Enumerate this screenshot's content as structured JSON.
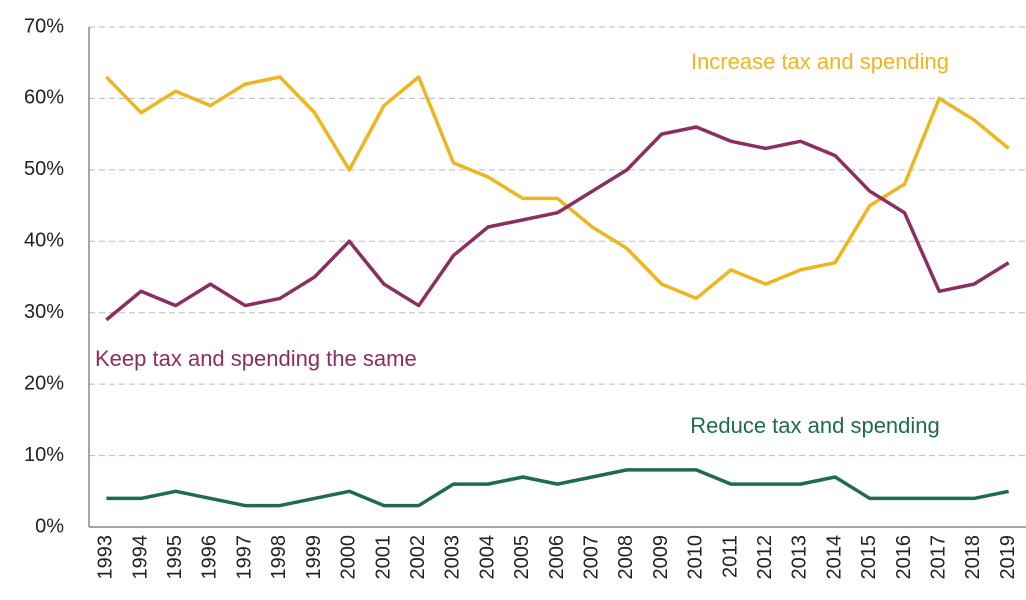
{
  "chart_data": {
    "type": "line",
    "categories": [
      "1993",
      "1994",
      "1995",
      "1996",
      "1997",
      "1998",
      "1999",
      "2000",
      "2001",
      "2002",
      "2003",
      "2004",
      "2005",
      "2006",
      "2007",
      "2008",
      "2009",
      "2010",
      "2011",
      "2012",
      "2013",
      "2014",
      "2015",
      "2016",
      "2017",
      "2018",
      "2019"
    ],
    "series": [
      {
        "name": "Increase tax and spending",
        "color": "#efb521",
        "values": [
          63,
          58,
          61,
          59,
          62,
          63,
          58,
          50,
          59,
          63,
          51,
          49,
          46,
          46,
          42,
          39,
          34,
          32,
          36,
          34,
          36,
          37,
          45,
          48,
          60,
          57,
          53
        ]
      },
      {
        "name": "Keep tax and spending the same",
        "color": "#8b2e62",
        "values": [
          29,
          33,
          31,
          34,
          31,
          32,
          35,
          40,
          34,
          31,
          38,
          42,
          43,
          44,
          47,
          50,
          55,
          56,
          54,
          53,
          54,
          52,
          47,
          44,
          33,
          34,
          37
        ]
      },
      {
        "name": "Reduce tax and spending",
        "color": "#1f6b52",
        "values": [
          4,
          4,
          5,
          4,
          3,
          3,
          4,
          5,
          3,
          3,
          6,
          6,
          7,
          6,
          7,
          8,
          8,
          8,
          6,
          6,
          6,
          7,
          4,
          4,
          4,
          4,
          5
        ]
      }
    ],
    "ylim": [
      0,
      70
    ],
    "yticks": [
      {
        "value": 0,
        "label": "0%"
      },
      {
        "value": 10,
        "label": "10%"
      },
      {
        "value": 20,
        "label": "20%"
      },
      {
        "value": 30,
        "label": "30%"
      },
      {
        "value": 40,
        "label": "40%"
      },
      {
        "value": 50,
        "label": "50%"
      },
      {
        "value": 60,
        "label": "60%"
      },
      {
        "value": 70,
        "label": "70%"
      }
    ],
    "grid": true
  }
}
